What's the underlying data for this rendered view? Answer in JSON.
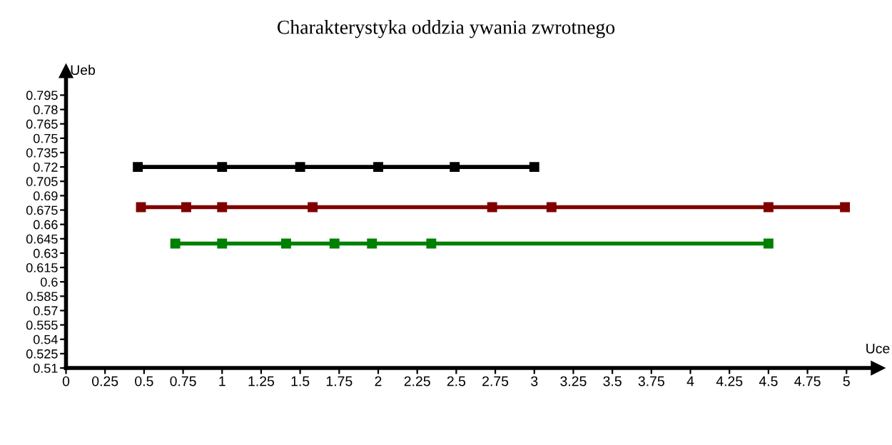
{
  "chart_data": {
    "type": "line",
    "title": "Charakterystyka oddzia ywania zwrotnego",
    "xlabel": "Uce",
    "ylabel": "Ueb",
    "marker": "square",
    "line_style": "solid",
    "grid": false,
    "legend": false,
    "series": [
      {
        "color": "#000000",
        "x": [
          0.46,
          1.0,
          1.5,
          2.0,
          2.49,
          3.0
        ],
        "values": [
          0.72,
          0.72,
          0.72,
          0.72,
          0.72,
          0.72
        ]
      },
      {
        "color": "#800000",
        "x": [
          0.48,
          0.77,
          1.0,
          1.58,
          2.73,
          3.11,
          4.5,
          4.99
        ],
        "values": [
          0.678,
          0.678,
          0.678,
          0.678,
          0.678,
          0.678,
          0.678,
          0.678
        ]
      },
      {
        "color": "#008000",
        "x": [
          0.7,
          1.0,
          1.41,
          1.72,
          1.96,
          2.34,
          4.5
        ],
        "values": [
          0.64,
          0.64,
          0.64,
          0.64,
          0.64,
          0.64,
          0.64
        ]
      }
    ],
    "xlim": [
      0,
      5.2
    ],
    "ylim": [
      0.51,
      0.82
    ],
    "xticks": [
      0,
      0.25,
      0.5,
      0.75,
      1,
      1.25,
      1.5,
      1.75,
      2,
      2.25,
      2.5,
      2.75,
      3,
      3.25,
      3.5,
      3.75,
      4,
      4.25,
      4.5,
      4.75,
      5
    ],
    "yticks": [
      0.51,
      0.525,
      0.54,
      0.555,
      0.57,
      0.585,
      0.6,
      0.615,
      0.63,
      0.645,
      0.66,
      0.675,
      0.69,
      0.705,
      0.72,
      0.735,
      0.75,
      0.765,
      0.78,
      0.795
    ]
  }
}
